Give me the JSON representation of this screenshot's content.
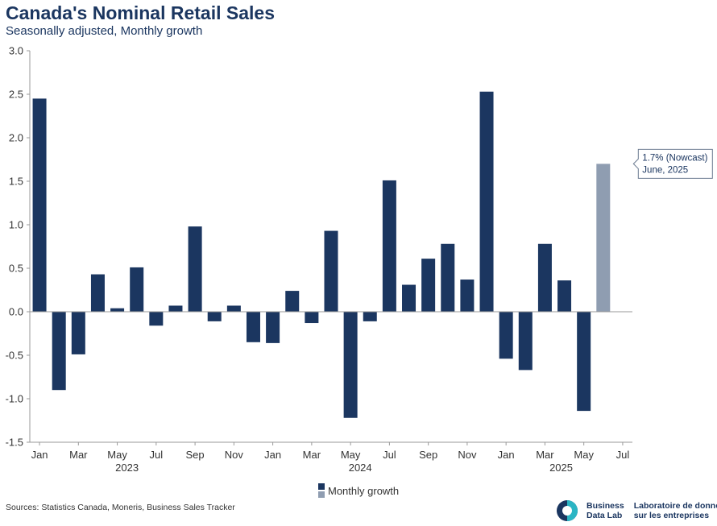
{
  "header": {
    "title": "Canada's Nominal Retail Sales",
    "subtitle": "Seasonally adjusted, Monthly growth"
  },
  "chart_data": {
    "type": "bar",
    "title": "Canada's Nominal Retail Sales",
    "subtitle": "Seasonally adjusted, Monthly growth",
    "ylim": [
      -1.5,
      3.0
    ],
    "yticks": [
      "3.0",
      "2.5",
      "2.0",
      "1.5",
      "1.0",
      "0.5",
      "0.0",
      "-0.5",
      "-1.0",
      "-1.5"
    ],
    "ytick_values": [
      3.0,
      2.5,
      2.0,
      1.5,
      1.0,
      0.5,
      0.0,
      -0.5,
      -1.0,
      -1.5
    ],
    "categories": [
      "Jan 2023",
      "Feb 2023",
      "Mar 2023",
      "Apr 2023",
      "May 2023",
      "Jun 2023",
      "Jul 2023",
      "Aug 2023",
      "Sep 2023",
      "Oct 2023",
      "Nov 2023",
      "Dec 2023",
      "Jan 2024",
      "Feb 2024",
      "Mar 2024",
      "Apr 2024",
      "May 2024",
      "Jun 2024",
      "Jul 2024",
      "Aug 2024",
      "Sep 2024",
      "Oct 2024",
      "Nov 2024",
      "Dec 2024",
      "Jan 2025",
      "Feb 2025",
      "Mar 2025",
      "Apr 2025",
      "May 2025",
      "Jun 2025"
    ],
    "values": [
      2.45,
      -0.9,
      -0.49,
      0.43,
      0.04,
      0.51,
      -0.16,
      0.07,
      0.98,
      -0.11,
      0.07,
      -0.35,
      -0.36,
      0.24,
      -0.13,
      0.93,
      -1.22,
      -0.11,
      1.51,
      0.31,
      0.61,
      0.78,
      0.37,
      2.53,
      -0.54,
      -0.67,
      0.78,
      0.36,
      -1.14,
      1.7
    ],
    "nowcast_index": 29,
    "month_ticks": [
      "Jan",
      "Mar",
      "May",
      "Jul",
      "Sep",
      "Nov",
      "Jan",
      "Mar",
      "May",
      "Jul",
      "Sep",
      "Nov",
      "Jan",
      "Mar",
      "May",
      "Jul"
    ],
    "year_labels": [
      "2023",
      "2024",
      "2025"
    ],
    "legend": {
      "label": "Monthly growth",
      "position": "bottom"
    },
    "annotation": {
      "line1": "1.7% (Nowcast)",
      "line2": "June, 2025"
    },
    "colors": {
      "actual": "#1b3660",
      "nowcast": "#8f9db1",
      "axis": "#999999"
    }
  },
  "footer": {
    "sources": "Sources: Statistics Canada, Moneris, Business Sales Tracker",
    "logo_en_line1": "Business",
    "logo_en_line2": "Data Lab",
    "logo_fr_line1": "Laboratoire de données",
    "logo_fr_line2": "sur les entreprises"
  }
}
